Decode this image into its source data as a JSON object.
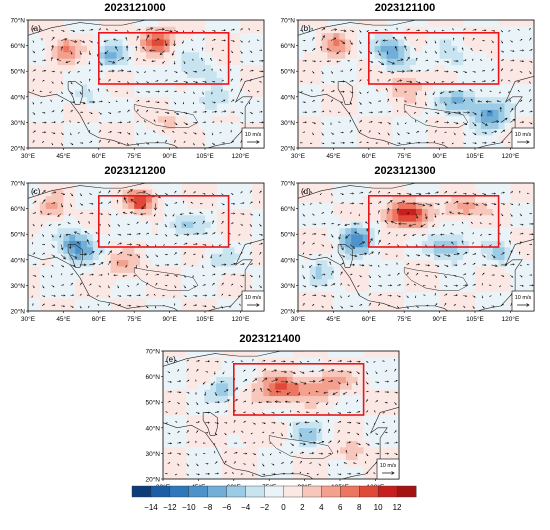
{
  "panels": [
    {
      "title": "2023121000",
      "tag": "(a)"
    },
    {
      "title": "2023121100",
      "tag": "(b)"
    },
    {
      "title": "2023121200",
      "tag": "(c)"
    },
    {
      "title": "2023121300",
      "tag": "(d)"
    },
    {
      "title": "2023121400",
      "tag": "(e)"
    }
  ],
  "map": {
    "lat_labels": [
      "70°N",
      "60°N",
      "50°N",
      "40°N",
      "30°N",
      "20°N"
    ],
    "lon_labels": [
      "30°E",
      "45°E",
      "60°E",
      "75°E",
      "90°E",
      "105°E",
      "120°E"
    ],
    "lon_range": [
      30,
      130
    ],
    "lat_range": [
      20,
      70
    ],
    "box": {
      "lon": [
        60,
        115
      ],
      "lat": [
        45,
        65
      ]
    },
    "ref_vector_label": "10 m/s"
  },
  "colorbar": {
    "labels": [
      "−14",
      "−12",
      "−10",
      "−8",
      "−6",
      "−4",
      "−2",
      "0",
      "2",
      "4",
      "6",
      "8",
      "10",
      "12"
    ],
    "colors": [
      "#0b3d78",
      "#1c5ea6",
      "#2f77bb",
      "#4d93c9",
      "#72afd8",
      "#9ccbe6",
      "#c8e4f1",
      "#eaf4f8",
      "#fbe8e4",
      "#f8c7bc",
      "#f3a08e",
      "#ec7660",
      "#e04838",
      "#c81e1e",
      "#a51212"
    ]
  }
}
